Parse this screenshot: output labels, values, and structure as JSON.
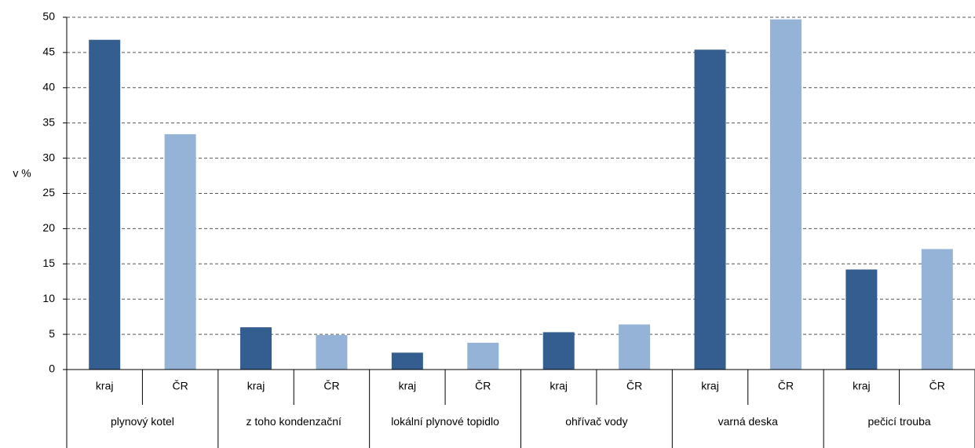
{
  "chart_data": {
    "type": "bar",
    "y_label": "v %",
    "categories": [
      "kraj",
      "ČR",
      "kraj",
      "ČR",
      "kraj",
      "ČR",
      "kraj",
      "ČR",
      "kraj",
      "ČR",
      "kraj",
      "ČR"
    ],
    "groups": [
      "plynový kotel",
      "z toho kondenzační",
      "lokální plynové topidlo",
      "ohřívač vody",
      "varná deska",
      "pečicí trouba"
    ],
    "values": [
      46.8,
      33.4,
      6.0,
      4.9,
      2.4,
      3.8,
      5.3,
      6.4,
      45.4,
      49.7,
      14.2,
      17.1
    ],
    "colors": [
      "#345e8f",
      "#95b3d7"
    ],
    "ylim": [
      0,
      50
    ],
    "yticks": [
      0,
      5,
      10,
      15,
      20,
      25,
      30,
      35,
      40,
      45,
      50
    ],
    "grid": true
  }
}
